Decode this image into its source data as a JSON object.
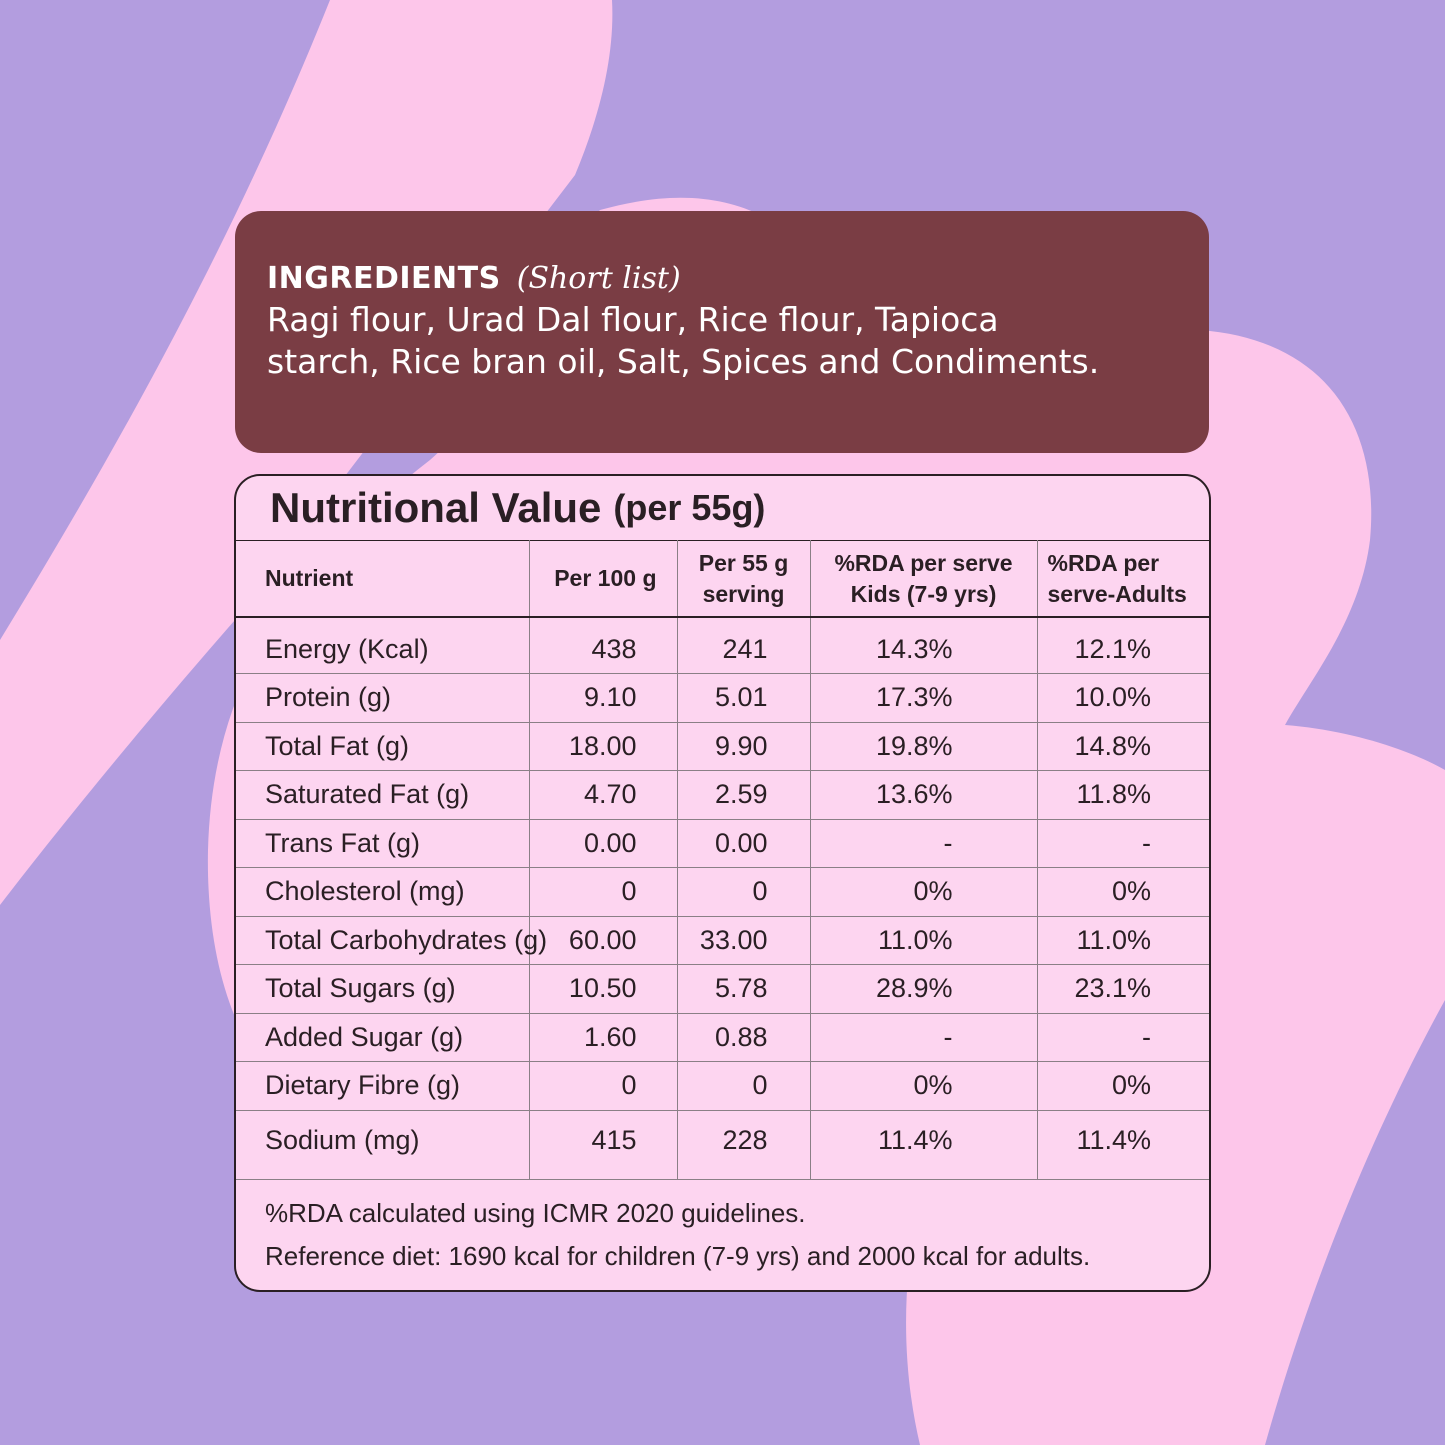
{
  "colors": {
    "background": "#b39ddf",
    "shape": "#fdc6ea",
    "ingredients_panel": "#7a3d44",
    "table_fill": "#fdd5f0",
    "text": "#2a1f24"
  },
  "ingredients": {
    "title": "INGREDIENTS",
    "subtitle": "(Short list)",
    "line1": "Ragi flour, Urad Dal flour, Rice flour, Tapioca",
    "line2": "starch, Rice bran oil, Salt, Spices and Condiments."
  },
  "nutrition": {
    "title": "Nutritional Value",
    "subtitle": "(per 55g)",
    "headers": {
      "nutrient": "Nutrient",
      "per100": "Per 100 g",
      "per55_line1": "Per 55 g",
      "per55_line2": "serving",
      "kids_line1": "%RDA per serve",
      "kids_line2": "Kids (7-9 yrs)",
      "adults_line1": "%RDA per",
      "adults_line2": "serve-Adults"
    },
    "rows": [
      {
        "nutrient": "Energy (Kcal)",
        "per100": "438",
        "per55": "241",
        "kids": "14.3%",
        "adults": "12.1%"
      },
      {
        "nutrient": "Protein (g)",
        "per100": "9.10",
        "per55": "5.01",
        "kids": "17.3%",
        "adults": "10.0%"
      },
      {
        "nutrient": "Total Fat (g)",
        "per100": "18.00",
        "per55": "9.90",
        "kids": "19.8%",
        "adults": "14.8%"
      },
      {
        "nutrient": "Saturated Fat (g)",
        "per100": "4.70",
        "per55": "2.59",
        "kids": "13.6%",
        "adults": "11.8%"
      },
      {
        "nutrient": "Trans Fat (g)",
        "per100": "0.00",
        "per55": "0.00",
        "kids": "-",
        "adults": "-"
      },
      {
        "nutrient": "Cholesterol (mg)",
        "per100": "0",
        "per55": "0",
        "kids": "0%",
        "adults": "0%"
      },
      {
        "nutrient": "Total Carbohydrates (g)",
        "per100": "60.00",
        "per55": "33.00",
        "kids": "11.0%",
        "adults": "11.0%"
      },
      {
        "nutrient": "Total Sugars (g)",
        "per100": "10.50",
        "per55": "5.78",
        "kids": "28.9%",
        "adults": "23.1%"
      },
      {
        "nutrient": "Added Sugar (g)",
        "per100": "1.60",
        "per55": "0.88",
        "kids": "-",
        "adults": "-"
      },
      {
        "nutrient": "Dietary Fibre (g)",
        "per100": "0",
        "per55": "0",
        "kids": "0%",
        "adults": "0%"
      },
      {
        "nutrient": "Sodium (mg)",
        "per100": "415",
        "per55": "228",
        "kids": "11.4%",
        "adults": "11.4%"
      }
    ],
    "note1": "%RDA calculated using ICMR 2020 guidelines.",
    "note2": "Reference diet: 1690 kcal for children (7-9 yrs) and 2000 kcal for adults."
  }
}
